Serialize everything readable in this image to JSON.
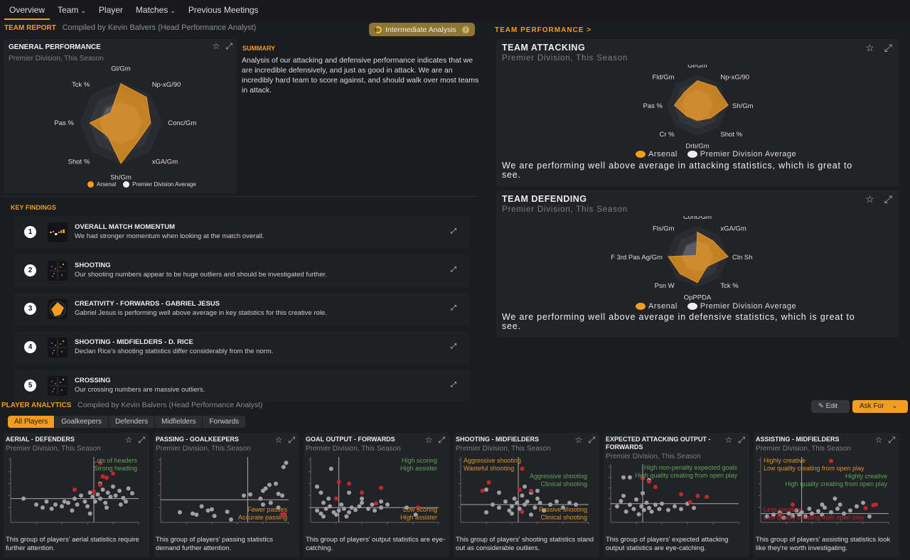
{
  "nav": {
    "items": [
      "Overview",
      "Team",
      "Player",
      "Matches",
      "Previous Meetings"
    ],
    "active": 0,
    "dropdowns": [
      false,
      true,
      false,
      true,
      false
    ]
  },
  "team_report": {
    "label": "TEAM REPORT",
    "compiled": "Compiled by Kevin Balvers (Head Performance Analyst)",
    "badge": "Intermediate Analysis"
  },
  "general": {
    "title": "GENERAL PERFORMANCE",
    "subtitle": "Premier Division, This Season"
  },
  "summary": {
    "label": "SUMMARY",
    "text": "Analysis of our attacking and defensive performance indicates that we are incredible defensively, and just as good in attack. We are an incredibly hard team to score against, and should walk over most teams in attack."
  },
  "legend": {
    "team": "Arsenal",
    "avg": "Premier Division Average"
  },
  "key_findings": {
    "label": "KEY FINDINGS",
    "items": [
      {
        "n": "1",
        "title": "OVERALL MATCH MOMENTUM",
        "desc": "We had stronger momentum when looking at the match overall.",
        "thumb": "momentum"
      },
      {
        "n": "2",
        "title": "SHOOTING",
        "desc": "Our shooting numbers appear to be huge outliers and should be investigated further.",
        "thumb": "scatter"
      },
      {
        "n": "3",
        "title": "CREATIVITY - FORWARDS - GABRIEL JESUS",
        "desc": "Gabriel Jesus is performing well above average in key statistics for this creative role.",
        "thumb": "radar"
      },
      {
        "n": "4",
        "title": "SHOOTING - MIDFIELDERS - D. RICE",
        "desc": "Declan Rice's shooting statistics differ considerably from the norm.",
        "thumb": "scatter"
      },
      {
        "n": "5",
        "title": "CROSSING",
        "desc": "Our crossing numbers are massive outliers.",
        "thumb": "scatter"
      }
    ]
  },
  "team_performance": {
    "label": "TEAM PERFORMANCE >",
    "attacking": {
      "title": "TEAM ATTACKING",
      "subtitle": "Premier Division, This Season",
      "text": "We are performing well above average in attacking statistics, which is great to see."
    },
    "defending": {
      "title": "TEAM DEFENDING",
      "subtitle": "Premier Division, This Season",
      "text": "We are performing well above average in defensive statistics, which is great to see."
    }
  },
  "player_analytics": {
    "label": "PLAYER ANALYTICS",
    "compiled": "Compiled by Kevin Balvers (Head Performance Analyst)",
    "edit": "Edit",
    "ask": "Ask For",
    "tabs": [
      "All Players",
      "Goalkeepers",
      "Defenders",
      "Midfielders",
      "Forwards"
    ],
    "active_tab": 0,
    "cards": [
      {
        "title": "AERIAL - DEFENDERS",
        "subtitle": "Premier Division, This Season",
        "desc": "This group of players' aerial statistics require further attention."
      },
      {
        "title": "PASSING - GOALKEEPERS",
        "subtitle": "Premier Division, This Season",
        "desc": "This group of players' passing statistics demand further attention."
      },
      {
        "title": "GOAL OUTPUT - FORWARDS",
        "subtitle": "Premier Division, This Season",
        "desc": "This group of players' output statistics are eye-catching."
      },
      {
        "title": "SHOOTING - MIDFIELDERS",
        "subtitle": "Premier Division, This Season",
        "desc": "This group of players' shooting statistics stand out as considerable outliers."
      },
      {
        "title": "EXPECTED ATTACKING OUTPUT - FORWARDS",
        "subtitle": "Premier Division, This Season",
        "desc": "This group of players' expected attacking output statistics are eye-catching."
      },
      {
        "title": "ASSISTING - MIDFIELDERS",
        "subtitle": "Premier Division, This Season",
        "desc": "This group of players' assisting statistics look like they're worth investigating."
      }
    ]
  },
  "colors": {
    "accent": "#f39c1f",
    "red": "#c0282e",
    "green": "#5fa35a",
    "label_orange": "#d9932a"
  },
  "chart_data": [
    {
      "type": "radar",
      "id": "general",
      "axes": [
        "Gl/Gm",
        "Np-xG/90",
        "Conc/Gm",
        "xGA/Gm",
        "Sh/Gm",
        "Shot %",
        "Pas %",
        "Tck %"
      ],
      "series": [
        {
          "name": "Arsenal",
          "values": [
            0.95,
            0.88,
            0.72,
            0.6,
            0.98,
            0.45,
            0.75,
            0.35
          ]
        },
        {
          "name": "Premier Division Average",
          "values": [
            0.5,
            0.5,
            0.5,
            0.5,
            0.5,
            0.5,
            0.5,
            0.5
          ]
        }
      ]
    },
    {
      "type": "radar",
      "id": "attacking",
      "axes": [
        "Gl/Gm",
        "Np-xG/90",
        "Sh/Gm",
        "Shot %",
        "Drb/Gm",
        "Cr %",
        "Pas %",
        "Fld/Gm"
      ],
      "series": [
        {
          "name": "Arsenal",
          "values": [
            0.8,
            0.85,
            1.0,
            0.6,
            0.5,
            0.5,
            0.75,
            0.6
          ]
        },
        {
          "name": "Premier Division Average",
          "values": [
            0.5,
            0.5,
            0.5,
            0.5,
            0.5,
            0.5,
            0.5,
            0.5
          ]
        }
      ]
    },
    {
      "type": "radar",
      "id": "defending",
      "axes": [
        "Conc/Gm",
        "xGA/Gm",
        "Cln Sh",
        "Tck %",
        "OpPPDA",
        "Psn W",
        "F 3rd Pas Ag/Gm",
        "Fls/Gm"
      ],
      "series": [
        {
          "name": "Arsenal",
          "values": [
            0.8,
            0.72,
            1.0,
            0.45,
            0.85,
            0.8,
            0.95,
            0.05
          ]
        },
        {
          "name": "Premier Division Average",
          "values": [
            0.5,
            0.5,
            0.5,
            0.5,
            0.5,
            0.5,
            0.5,
            0.5
          ]
        }
      ]
    },
    {
      "type": "scatter",
      "id": "aerial",
      "vline": 65,
      "hline": 35,
      "labels": [
        {
          "pos": "tr",
          "lines": [
            "Lots of headers",
            "Strong heading"
          ],
          "color": "green"
        }
      ],
      "points": [
        [
          10,
          35
        ],
        [
          20,
          25
        ],
        [
          25,
          20
        ],
        [
          28,
          30
        ],
        [
          32,
          18
        ],
        [
          35,
          25
        ],
        [
          40,
          22
        ],
        [
          42,
          30
        ],
        [
          45,
          28
        ],
        [
          48,
          15
        ],
        [
          50,
          35
        ],
        [
          52,
          25
        ],
        [
          55,
          40
        ],
        [
          58,
          30
        ],
        [
          60,
          22
        ],
        [
          62,
          45
        ],
        [
          64,
          38
        ],
        [
          66,
          30
        ],
        [
          68,
          42
        ],
        [
          70,
          35
        ],
        [
          72,
          50
        ],
        [
          74,
          28
        ],
        [
          76,
          45
        ],
        [
          78,
          38
        ],
        [
          80,
          55
        ],
        [
          82,
          40
        ],
        [
          85,
          48
        ],
        [
          88,
          36
        ],
        [
          90,
          30
        ],
        [
          92,
          52
        ],
        [
          95,
          44
        ],
        [
          70,
          60
        ],
        [
          75,
          20
        ],
        [
          62,
          10
        ],
        [
          86,
          25
        ]
      ],
      "red": [
        [
          50,
          50
        ],
        [
          65,
          47
        ],
        [
          70,
          58
        ],
        [
          72,
          72
        ],
        [
          75,
          70
        ],
        [
          80,
          77
        ],
        [
          70,
          95
        ]
      ]
    },
    {
      "type": "scatter",
      "id": "passing",
      "vline": 68,
      "hline": 33,
      "labels": [
        {
          "pos": "br",
          "lines": [
            "Fewer passes",
            "Accurate passing"
          ],
          "color": "orange"
        }
      ],
      "points": [
        [
          15,
          12
        ],
        [
          25,
          10
        ],
        [
          28,
          8
        ],
        [
          32,
          22
        ],
        [
          37,
          15
        ],
        [
          40,
          17
        ],
        [
          42,
          6
        ],
        [
          52,
          13
        ],
        [
          55,
          0
        ],
        [
          65,
          40
        ],
        [
          70,
          42
        ],
        [
          78,
          35
        ],
        [
          80,
          48
        ],
        [
          82,
          52
        ],
        [
          85,
          58
        ],
        [
          80,
          25
        ],
        [
          86,
          28
        ],
        [
          95,
          40
        ],
        [
          92,
          43
        ],
        [
          90,
          60
        ],
        [
          92,
          20
        ],
        [
          96,
          88
        ],
        [
          98,
          95
        ]
      ],
      "red": [
        [
          95,
          9
        ],
        [
          97,
          9
        ]
      ]
    },
    {
      "type": "scatter",
      "id": "goal_output",
      "vline": 22,
      "hline": 20,
      "labels": [
        {
          "pos": "tr",
          "lines": [
            "High scoring",
            "High assister"
          ],
          "color": "green"
        },
        {
          "pos": "br",
          "lines": [
            "Low scoring",
            "High assister"
          ],
          "color": "orange"
        }
      ],
      "points": [
        [
          5,
          15
        ],
        [
          8,
          10
        ],
        [
          10,
          5
        ],
        [
          12,
          18
        ],
        [
          15,
          22
        ],
        [
          18,
          12
        ],
        [
          20,
          8
        ],
        [
          22,
          15
        ],
        [
          24,
          25
        ],
        [
          26,
          18
        ],
        [
          28,
          5
        ],
        [
          30,
          12
        ],
        [
          32,
          20
        ],
        [
          35,
          16
        ],
        [
          38,
          22
        ],
        [
          40,
          28
        ],
        [
          45,
          18
        ],
        [
          48,
          25
        ],
        [
          50,
          15
        ],
        [
          55,
          20
        ],
        [
          60,
          25
        ],
        [
          5,
          55
        ],
        [
          8,
          45
        ],
        [
          14,
          35
        ],
        [
          10,
          28
        ],
        [
          16,
          85
        ],
        [
          30,
          45
        ],
        [
          40,
          35
        ],
        [
          55,
          30
        ],
        [
          75,
          20
        ],
        [
          82,
          8
        ]
      ],
      "red": [
        [
          22,
          63
        ],
        [
          30,
          60
        ],
        [
          40,
          45
        ],
        [
          20,
          35
        ],
        [
          51,
          27
        ],
        [
          55,
          53
        ],
        [
          84,
          20
        ]
      ]
    },
    {
      "type": "scatter",
      "id": "shooting_mid",
      "vline": 45,
      "hline": 25,
      "labels": [
        {
          "pos": "tl",
          "lines": [
            "Aggressive shooting",
            "Wasteful shooting"
          ],
          "color": "orange"
        },
        {
          "pos": "tr",
          "lines": [
            "Aggressive shooting",
            "Clinical shooting"
          ],
          "color": "green"
        },
        {
          "pos": "br",
          "lines": [
            "Passive shooting",
            "Clinical shooting"
          ],
          "color": "orange"
        }
      ],
      "points": [
        [
          20,
          12
        ],
        [
          25,
          25
        ],
        [
          30,
          20
        ],
        [
          35,
          30
        ],
        [
          38,
          15
        ],
        [
          40,
          22
        ],
        [
          42,
          35
        ],
        [
          44,
          28
        ],
        [
          46,
          18
        ],
        [
          48,
          40
        ],
        [
          50,
          25
        ],
        [
          52,
          30
        ],
        [
          55,
          45
        ],
        [
          58,
          20
        ],
        [
          60,
          35
        ],
        [
          62,
          28
        ],
        [
          65,
          15
        ],
        [
          70,
          25
        ],
        [
          75,
          30
        ],
        [
          80,
          20
        ],
        [
          85,
          28
        ],
        [
          20,
          50
        ],
        [
          30,
          45
        ],
        [
          50,
          55
        ],
        [
          60,
          48
        ],
        [
          40,
          10
        ],
        [
          55,
          8
        ],
        [
          90,
          25
        ]
      ],
      "red": [
        [
          17,
          48
        ],
        [
          22,
          62
        ],
        [
          46,
          50
        ],
        [
          55,
          48
        ],
        [
          48,
          85
        ],
        [
          48,
          13
        ]
      ]
    },
    {
      "type": "scatter",
      "id": "expected_attacking",
      "vline": 25,
      "hline": 30,
      "labels": [
        {
          "pos": "tr",
          "lines": [
            "High non-penalty expected goals",
            "High quality creating from open play"
          ],
          "color": "green"
        }
      ],
      "points": [
        [
          5,
          25
        ],
        [
          8,
          35
        ],
        [
          10,
          45
        ],
        [
          12,
          15
        ],
        [
          15,
          28
        ],
        [
          18,
          20
        ],
        [
          20,
          38
        ],
        [
          22,
          10
        ],
        [
          24,
          25
        ],
        [
          26,
          18
        ],
        [
          28,
          32
        ],
        [
          30,
          22
        ],
        [
          32,
          15
        ],
        [
          35,
          28
        ],
        [
          38,
          20
        ],
        [
          40,
          30
        ],
        [
          45,
          18
        ],
        [
          50,
          25
        ],
        [
          55,
          20
        ],
        [
          25,
          50
        ],
        [
          30,
          75
        ],
        [
          15,
          80
        ],
        [
          10,
          80
        ],
        [
          60,
          30
        ],
        [
          65,
          22
        ]
      ],
      "red": [
        [
          25,
          78
        ],
        [
          30,
          72
        ],
        [
          35,
          62
        ],
        [
          55,
          48
        ],
        [
          62,
          33
        ],
        [
          68,
          45
        ],
        [
          75,
          43
        ]
      ]
    },
    {
      "type": "scatter",
      "id": "assisting_mid",
      "vline": 32,
      "hline": 10,
      "labels": [
        {
          "pos": "tl",
          "lines": [
            "Highly creative",
            "Low quality creating from open play"
          ],
          "color": "orange"
        },
        {
          "pos": "tr",
          "lines": [
            "Highly creative",
            "High quality creating from open play"
          ],
          "color": "green"
        },
        {
          "pos": "bl",
          "lines": [
            "Less creative",
            "Low quality creating from open play"
          ],
          "color": "red"
        }
      ],
      "points": [
        [
          5,
          5
        ],
        [
          10,
          8
        ],
        [
          15,
          12
        ],
        [
          18,
          3
        ],
        [
          22,
          10
        ],
        [
          25,
          6
        ],
        [
          28,
          15
        ],
        [
          30,
          8
        ],
        [
          32,
          12
        ],
        [
          35,
          5
        ],
        [
          38,
          18
        ],
        [
          40,
          10
        ],
        [
          45,
          14
        ],
        [
          48,
          8
        ],
        [
          50,
          20
        ],
        [
          55,
          12
        ],
        [
          60,
          18
        ],
        [
          62,
          25
        ],
        [
          65,
          10
        ],
        [
          70,
          15
        ],
        [
          75,
          22
        ],
        [
          80,
          28
        ],
        [
          58,
          35
        ],
        [
          48,
          25
        ],
        [
          85,
          5
        ]
      ],
      "red": [
        [
          15,
          8
        ],
        [
          25,
          25
        ],
        [
          55,
          98
        ],
        [
          82,
          19
        ],
        [
          88,
          24
        ],
        [
          90,
          25
        ]
      ]
    }
  ]
}
